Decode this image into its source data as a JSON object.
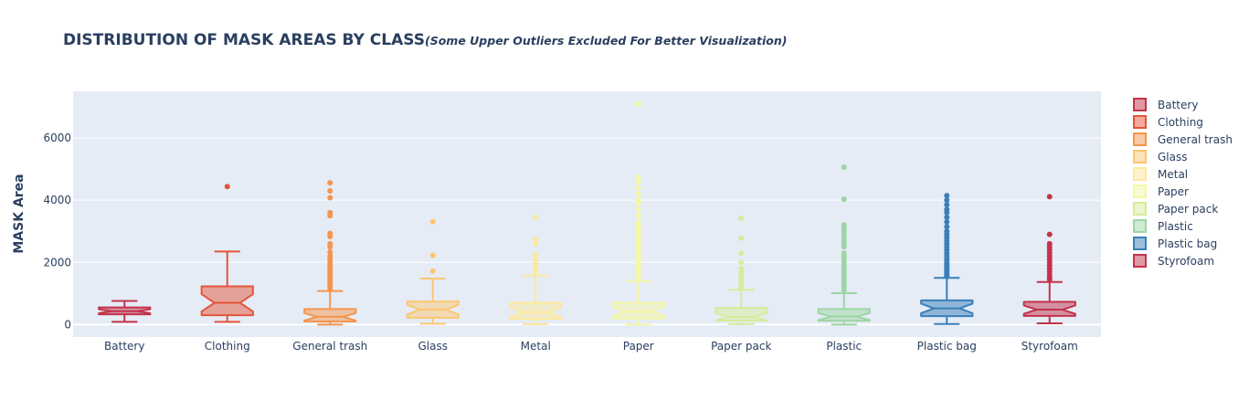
{
  "chart_data": {
    "type": "box",
    "title": "DISTRIBUTION OF MASK AREAS BY CLASS",
    "subtitle": "(Some Upper Outliers Excluded For Better Visualization)",
    "xlabel": "",
    "ylabel": "MASK Area",
    "ylim": [
      -400,
      7500
    ],
    "yticks": [
      0,
      2000,
      4000,
      6000
    ],
    "ytick_labels": [
      "0",
      "2000",
      "4000",
      "6000"
    ],
    "grid": true,
    "notched": true,
    "legend_position": "right",
    "categories": [
      "Battery",
      "Clothing",
      "General trash",
      "Glass",
      "Metal",
      "Paper",
      "Paper pack",
      "Plastic",
      "Plastic bag",
      "Styrofoam"
    ],
    "series": [
      {
        "name": "Battery",
        "color": "#c2334a",
        "q1": 330,
        "median": 430,
        "q3": 550,
        "lowerfence": 90,
        "upperfence": 760,
        "outliers": []
      },
      {
        "name": "Clothing",
        "color": "#e4553a",
        "q1": 300,
        "median": 700,
        "q3": 1230,
        "lowerfence": 90,
        "upperfence": 2350,
        "outliers": [
          4440
        ]
      },
      {
        "name": "General trash",
        "color": "#f5954d",
        "q1": 100,
        "median": 250,
        "q3": 500,
        "lowerfence": 0,
        "upperfence": 1080,
        "outliers": [
          1150,
          1220,
          1300,
          1380,
          1450,
          1520,
          1600,
          1680,
          1760,
          1840,
          1920,
          2000,
          2100,
          2200,
          2330,
          2500,
          2600,
          2830,
          2930,
          3500,
          3600,
          4080,
          4300,
          4560
        ]
      },
      {
        "name": "Glass",
        "color": "#fcc671",
        "q1": 220,
        "median": 480,
        "q3": 740,
        "lowerfence": 30,
        "upperfence": 1480,
        "outliers": [
          1720,
          2220,
          3310
        ]
      },
      {
        "name": "Metal",
        "color": "#fde89b",
        "q1": 180,
        "median": 400,
        "q3": 700,
        "lowerfence": 10,
        "upperfence": 1580,
        "outliers": [
          1700,
          1800,
          1950,
          2100,
          2250,
          2600,
          2750,
          3450
        ]
      },
      {
        "name": "Paper",
        "color": "#f5f7a6",
        "q1": 200,
        "median": 420,
        "q3": 700,
        "lowerfence": 0,
        "upperfence": 1400,
        "outliers": [
          1500,
          1600,
          1700,
          1800,
          1900,
          2000,
          2100,
          2200,
          2300,
          2400,
          2500,
          2600,
          2700,
          2800,
          2900,
          3000,
          3100,
          3200,
          3300,
          3500,
          3700,
          3900,
          4000,
          4200,
          4400,
          4600,
          4750,
          7100
        ]
      },
      {
        "name": "Paper pack",
        "color": "#d5ed9a",
        "q1": 130,
        "median": 250,
        "q3": 540,
        "lowerfence": 10,
        "upperfence": 1120,
        "outliers": [
          1200,
          1300,
          1400,
          1500,
          1600,
          1700,
          1800,
          2000,
          2300,
          2780,
          3420
        ]
      },
      {
        "name": "Plastic",
        "color": "#9ed5a4",
        "q1": 120,
        "median": 260,
        "q3": 500,
        "lowerfence": 0,
        "upperfence": 1010,
        "outliers": [
          1100,
          1200,
          1300,
          1400,
          1500,
          1600,
          1700,
          1800,
          1900,
          2000,
          2100,
          2200,
          2300,
          2500,
          2600,
          2700,
          2800,
          2900,
          3000,
          3100,
          3200,
          4030,
          5060
        ]
      },
      {
        "name": "Plastic bag",
        "color": "#3a7fb9",
        "q1": 270,
        "median": 520,
        "q3": 780,
        "lowerfence": 20,
        "upperfence": 1500,
        "outliers": [
          1550,
          1600,
          1650,
          1700,
          1750,
          1800,
          1850,
          1900,
          1950,
          2000,
          2100,
          2200,
          2300,
          2400,
          2500,
          2600,
          2700,
          2800,
          2900,
          3000,
          3150,
          3300,
          3450,
          3600,
          3700,
          3850,
          4000,
          4150
        ]
      },
      {
        "name": "Styrofoam",
        "color": "#c2334a",
        "q1": 280,
        "median": 480,
        "q3": 730,
        "lowerfence": 40,
        "upperfence": 1370,
        "outliers": [
          1450,
          1500,
          1600,
          1700,
          1800,
          1900,
          2000,
          2100,
          2200,
          2300,
          2400,
          2500,
          2600,
          2900,
          4110
        ]
      }
    ]
  }
}
